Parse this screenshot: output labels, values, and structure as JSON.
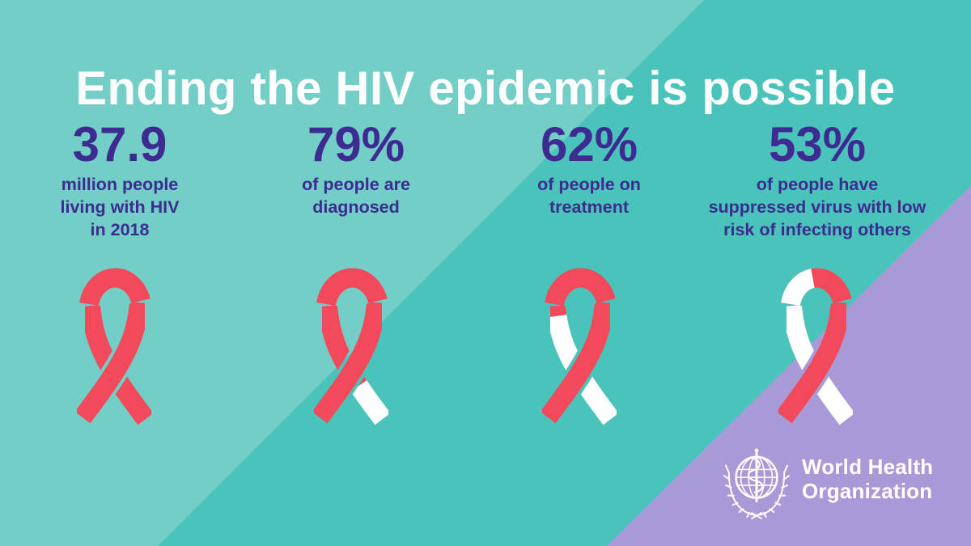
{
  "title": "Ending the HIV epidemic is possible",
  "palette": {
    "bg_light": "#72CEC6",
    "bg_medium": "#4AC4BB",
    "accent_purple": "#A89AD7",
    "ribbon_red": "#F2495B",
    "ribbon_white": "#FFFFFF",
    "stat_text": "#3E2B92",
    "title_text": "#FFFFFF",
    "logo_text": "#FFFFFF"
  },
  "stats": [
    {
      "value": "37.9",
      "label_lines": [
        "million people",
        "living with HIV",
        "in 2018"
      ],
      "ribbon": {
        "red_percent": 100,
        "arc_white_percent": 0
      }
    },
    {
      "value": "79%",
      "label_lines": [
        "of people are",
        "diagnosed"
      ],
      "ribbon": {
        "red_percent": 68,
        "arc_white_percent": 0
      }
    },
    {
      "value": "62%",
      "label_lines": [
        "of people on",
        "treatment"
      ],
      "ribbon": {
        "red_percent": 8,
        "arc_white_percent": 0
      }
    },
    {
      "value": "53%",
      "label_lines": [
        "of people have",
        "suppressed virus with low",
        "risk of infecting others"
      ],
      "ribbon": {
        "red_percent": 0,
        "arc_white_percent": 47
      }
    }
  ],
  "logo": {
    "line1": "World Health",
    "line2": "Organization"
  },
  "chart_data": {
    "type": "pictorial",
    "title": "Ending the HIV epidemic is possible",
    "categories": [
      "million people living with HIV in 2018",
      "of people are diagnosed",
      "of people on treatment",
      "of people have suppressed virus with low risk of infecting others"
    ],
    "values": [
      37.9,
      79,
      62,
      53
    ],
    "units": [
      "million",
      "%",
      "%",
      "%"
    ],
    "marker": "red awareness ribbon; white portion of ribbon shows remainder to 100%",
    "source": "World Health Organization"
  }
}
